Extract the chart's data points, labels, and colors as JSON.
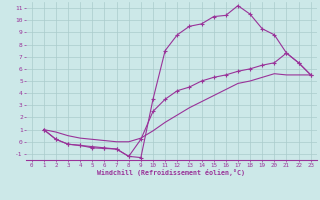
{
  "xlabel": "Windchill (Refroidissement éolien,°C)",
  "bg_color": "#cce8e8",
  "line_color": "#993399",
  "grid_color": "#aacccc",
  "xlim": [
    -0.5,
    23.5
  ],
  "ylim": [
    -1.5,
    11.5
  ],
  "xticks": [
    0,
    1,
    2,
    3,
    4,
    5,
    6,
    7,
    8,
    9,
    10,
    11,
    12,
    13,
    14,
    15,
    16,
    17,
    18,
    19,
    20,
    21,
    22,
    23
  ],
  "yticks": [
    -1,
    0,
    1,
    2,
    3,
    4,
    5,
    6,
    7,
    8,
    9,
    10,
    11
  ],
  "line1_x": [
    1,
    2,
    3,
    4,
    5,
    6,
    7,
    8,
    9,
    10,
    11,
    12,
    13,
    14,
    15,
    16,
    17,
    18,
    19,
    20,
    21,
    22,
    23
  ],
  "line1_y": [
    1.0,
    0.2,
    -0.2,
    -0.3,
    -0.4,
    -0.5,
    -0.6,
    -1.2,
    -1.3,
    3.5,
    7.5,
    8.8,
    9.5,
    9.7,
    10.3,
    10.4,
    11.2,
    10.5,
    9.3,
    8.8,
    7.3,
    6.5,
    5.5
  ],
  "line2_x": [
    1,
    2,
    3,
    4,
    5,
    6,
    7,
    8,
    9,
    10,
    11,
    12,
    13,
    14,
    15,
    16,
    17,
    18,
    19,
    20,
    21,
    22,
    23
  ],
  "line2_y": [
    1.0,
    0.2,
    -0.2,
    -0.3,
    -0.5,
    -0.55,
    -0.6,
    -1.2,
    0.2,
    2.5,
    3.5,
    4.2,
    4.5,
    5.0,
    5.3,
    5.5,
    5.8,
    6.0,
    6.3,
    6.5,
    7.3,
    6.5,
    5.5
  ],
  "line3_x": [
    1,
    2,
    3,
    4,
    5,
    6,
    7,
    8,
    9,
    10,
    11,
    12,
    13,
    14,
    15,
    16,
    17,
    18,
    19,
    20,
    21,
    22,
    23
  ],
  "line3_y": [
    1.0,
    0.8,
    0.5,
    0.3,
    0.2,
    0.1,
    0.0,
    0.0,
    0.3,
    0.9,
    1.6,
    2.2,
    2.8,
    3.3,
    3.8,
    4.3,
    4.8,
    5.0,
    5.3,
    5.6,
    5.5,
    5.5,
    5.5
  ]
}
